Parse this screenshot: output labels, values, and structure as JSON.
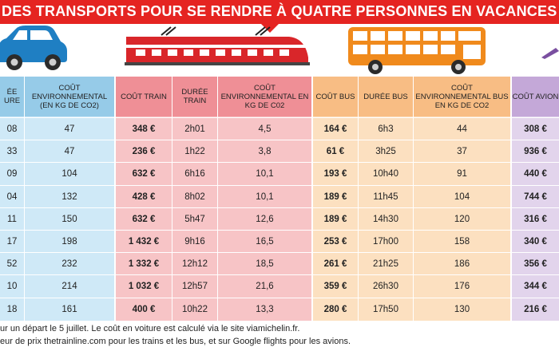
{
  "banner": {
    "title": "DES TRANSPORTS POUR SE RENDRE À QUATRE PERSONNES EN VACANCES"
  },
  "colors": {
    "banner": "#e52421",
    "car": "#cfe9f7",
    "train": "#f7c4c6",
    "bus": "#fce0c0",
    "plane": "#e2d4ec"
  },
  "icons": {
    "car": "car-icon",
    "train": "train-icon",
    "bus": "bus-icon",
    "plane": "plane-icon"
  },
  "headers": {
    "car_duration": "ÉE URE",
    "car_env": "COÛT ENVIRONNEMENTAL (EN KG DE CO2)",
    "train_cost": "COÛT TRAIN",
    "train_duration": "DURÉE TRAIN",
    "train_env": "COÛT ENVIRONNEMENTAL EN KG DE C02",
    "bus_cost": "COÛT BUS",
    "bus_duration": "DURÉE BUS",
    "bus_env": "COÛT ENVIRONNEMENTAL BUS EN KG DE CO2",
    "plane_cost": "COÛT AVION"
  },
  "rows": [
    {
      "car_duration": "08",
      "car_env": "47",
      "train_cost": "348 €",
      "train_duration": "2h01",
      "train_env": "4,5",
      "bus_cost": "164 €",
      "bus_duration": "6h3",
      "bus_env": "44",
      "plane_cost": "308 €"
    },
    {
      "car_duration": "33",
      "car_env": "47",
      "train_cost": "236 €",
      "train_duration": "1h22",
      "train_env": "3,8",
      "bus_cost": "61 €",
      "bus_duration": "3h25",
      "bus_env": "37",
      "plane_cost": "936 €"
    },
    {
      "car_duration": "09",
      "car_env": "104",
      "train_cost": "632 €",
      "train_duration": "6h16",
      "train_env": "10,1",
      "bus_cost": "193 €",
      "bus_duration": "10h40",
      "bus_env": "91",
      "plane_cost": "440 €"
    },
    {
      "car_duration": "04",
      "car_env": "132",
      "train_cost": "428 €",
      "train_duration": "8h02",
      "train_env": "10,1",
      "bus_cost": "189 €",
      "bus_duration": "11h45",
      "bus_env": "104",
      "plane_cost": "744 €"
    },
    {
      "car_duration": "11",
      "car_env": "150",
      "train_cost": "632 €",
      "train_duration": "5h47",
      "train_env": "12,6",
      "bus_cost": "189 €",
      "bus_duration": "14h30",
      "bus_env": "120",
      "plane_cost": "316 €"
    },
    {
      "car_duration": "17",
      "car_env": "198",
      "train_cost": "1 432 €",
      "train_duration": "9h16",
      "train_env": "16,5",
      "bus_cost": "253 €",
      "bus_duration": "17h00",
      "bus_env": "158",
      "plane_cost": "340 €"
    },
    {
      "car_duration": "52",
      "car_env": "232",
      "train_cost": "1 332 €",
      "train_duration": "12h12",
      "train_env": "18,5",
      "bus_cost": "261 €",
      "bus_duration": "21h25",
      "bus_env": "186",
      "plane_cost": "356 €"
    },
    {
      "car_duration": "10",
      "car_env": "214",
      "train_cost": "1 032 €",
      "train_duration": "12h57",
      "train_env": "21,6",
      "bus_cost": "359 €",
      "bus_duration": "26h30",
      "bus_env": "176",
      "plane_cost": "344 €"
    },
    {
      "car_duration": "18",
      "car_env": "161",
      "train_cost": "400 €",
      "train_duration": "10h22",
      "train_env": "13,3",
      "bus_cost": "280 €",
      "bus_duration": "17h50",
      "bus_env": "130",
      "plane_cost": "216 €"
    }
  ],
  "footer": {
    "line1": "ur un départ le 5 juillet. Le coût en voiture est calculé via le site viamichelin.fr.",
    "line2": "eur de prix thetrainline.com pour les trains et les bus, et sur Google flights pour les avions."
  }
}
